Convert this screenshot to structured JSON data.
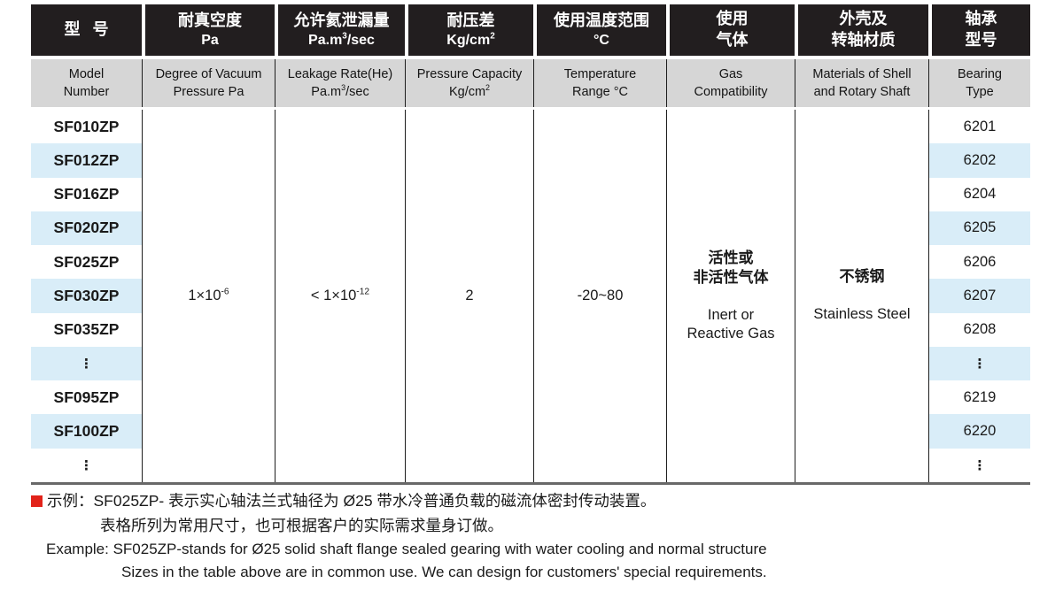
{
  "table": {
    "h1": [
      {
        "l1": "型 号",
        "l2": ""
      },
      {
        "l1": "耐真空度",
        "l2": "Pa"
      },
      {
        "l1": "允许氦泄漏量",
        "l2b": "Pa.m",
        "l2s": "3",
        "l2r": "/sec"
      },
      {
        "l1": "耐压差",
        "l2b": "Kg/cm",
        "l2s": "2",
        "l2r": ""
      },
      {
        "l1": "使用温度范围",
        "l2": "°C"
      },
      {
        "l1": "使用",
        "l2": "气体"
      },
      {
        "l1": "外壳及",
        "l2": "转轴材质"
      },
      {
        "l1": "轴承",
        "l2": "型号"
      }
    ],
    "h2": [
      {
        "l1": "Model",
        "l2": "Number"
      },
      {
        "l1": "Degree of Vacuum",
        "l2": "Pressure Pa"
      },
      {
        "l1": "Leakage Rate(He)",
        "l2b": "Pa.m",
        "l2s": "3",
        "l2r": "/sec"
      },
      {
        "l1": "Pressure Capacity",
        "l2b": "Kg/cm",
        "l2s": "2",
        "l2r": ""
      },
      {
        "l1": "Temperature",
        "l2": "Range °C"
      },
      {
        "l1": "Gas",
        "l2": "Compatibility"
      },
      {
        "l1": "Materials of Shell",
        "l2": "and Rotary Shaft"
      },
      {
        "l1": "Bearing",
        "l2": "Type"
      }
    ],
    "rows": [
      {
        "model": "SF010ZP",
        "bearing": "6201"
      },
      {
        "model": "SF012ZP",
        "bearing": "6202"
      },
      {
        "model": "SF016ZP",
        "bearing": "6204"
      },
      {
        "model": "SF020ZP",
        "bearing": "6205"
      },
      {
        "model": "SF025ZP",
        "bearing": "6206"
      },
      {
        "model": "SF030ZP",
        "bearing": "6207"
      },
      {
        "model": "SF035ZP",
        "bearing": "6208"
      },
      {
        "model": "⋮",
        "bearing": "⋮"
      },
      {
        "model": "SF095ZP",
        "bearing": "6219"
      },
      {
        "model": "SF100ZP",
        "bearing": "6220"
      },
      {
        "model": "⋮",
        "bearing": "⋮"
      }
    ],
    "values": {
      "vacuum": {
        "base": "1×10",
        "sup": "-6"
      },
      "leakage": {
        "base": "< 1×10",
        "sup": "-12"
      },
      "pressure": "2",
      "temperature": "-20~80",
      "gas": {
        "zh1": "活性或",
        "zh2": "非活性气体",
        "en1": "Inert or",
        "en2": "Reactive Gas"
      },
      "materials": {
        "zh": "不锈钢",
        "en": "Stainless Steel"
      }
    }
  },
  "notes": {
    "line1": "示例：SF025ZP- 表示实心轴法兰式轴径为 Ø25 带水冷普通负载的磁流体密封传动装置。",
    "line2": "表格所列为常用尺寸，也可根据客户的实际需求量身订做。",
    "line3": "Example: SF025ZP-stands for Ø25 solid shaft flange sealed gearing with water cooling and normal structure",
    "line4": "Sizes in the table above are in common use. We can design for customers' special requirements."
  },
  "colors": {
    "header_bg": "#221e1f",
    "subheader_bg": "#d6d6d6",
    "row_alt_blue": "#d9edf8",
    "grid_line": "#1e1e1e",
    "bottom_rule": "#686868",
    "bullet_red": "#e2231a"
  }
}
